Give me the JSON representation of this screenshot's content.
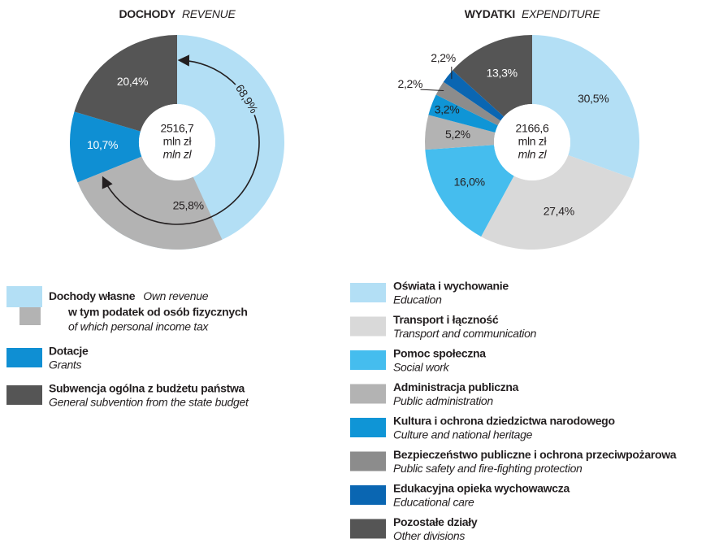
{
  "chart_data": [
    {
      "type": "pie",
      "title": "DOCHODY",
      "subtitle": "REVENUE",
      "center_label": [
        "2516,7",
        "mln zł",
        "mln zl"
      ],
      "categories": [
        "Dochody własne",
        "Dotacje",
        "Subwencja ogólna z budżetu państwa"
      ],
      "categories_en": [
        "Own revenue",
        "Grants",
        "General subvention from the state budget"
      ],
      "values": [
        68.9,
        10.7,
        20.4
      ],
      "value_labels": [
        "68,9%",
        "10,7%",
        "20,4%"
      ],
      "colors": [
        "#b3dff5",
        "#0f8fd3",
        "#555555"
      ],
      "of_which": {
        "name": "w tym podatek od osób fizycznych",
        "name_en": "of which personal income tax",
        "value": 25.8,
        "value_label": "25,8%",
        "color": "#b3b3b3"
      }
    },
    {
      "type": "pie",
      "title": "WYDATKI",
      "subtitle": "EXPENDITURE",
      "center_label": [
        "2166,6",
        "mln zł",
        "mln zl"
      ],
      "categories": [
        "Oświata i wychowanie",
        "Transport i łączność",
        "Pomoc społeczna",
        "Administracja publiczna",
        "Kultura i ochrona dziedzictwa narodowego",
        "Bezpieczeństwo publiczne i ochrona przeciwpożarowa",
        "Edukacyjna opieka wychowawcza",
        "Pozostałe działy"
      ],
      "categories_en": [
        "Education",
        "Transport and communication",
        "Social work",
        "Public administration",
        "Culture and national heritage",
        "Public safety and fire-fighting protection",
        "Educational care",
        "Other divisions"
      ],
      "values": [
        30.5,
        27.4,
        16.0,
        5.2,
        3.2,
        2.2,
        2.2,
        13.3
      ],
      "value_labels": [
        "30,5%",
        "27,4%",
        "16,0%",
        "5,2%",
        "3,2%",
        "2,2%",
        "2,2%",
        "13,3%"
      ],
      "colors": [
        "#b3dff5",
        "#d9d9d9",
        "#45bdee",
        "#b3b3b3",
        "#0f95d6",
        "#8c8c8c",
        "#0a66b2",
        "#555555"
      ]
    }
  ]
}
